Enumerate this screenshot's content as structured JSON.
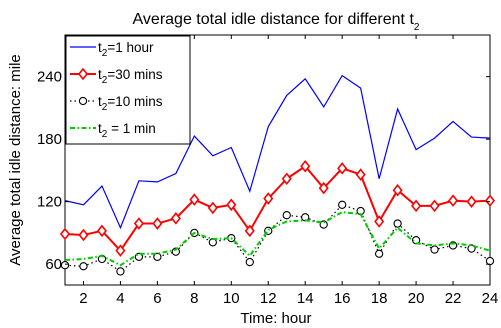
{
  "chart_data": {
    "type": "line",
    "title": "Average total idle distance for different t",
    "title_subscript": "2",
    "xlabel": "Time: hour",
    "ylabel": "Average total idle distance: mile",
    "xlim": [
      1,
      24
    ],
    "ylim": [
      40,
      280
    ],
    "x_ticks": [
      "2",
      "4",
      "6",
      "8",
      "10",
      "12",
      "14",
      "16",
      "18",
      "20",
      "22",
      "24"
    ],
    "y_ticks": [
      "60",
      "120",
      "180",
      "240"
    ],
    "legend_position": "top-left",
    "grid": false,
    "x": [
      1,
      2,
      3,
      4,
      5,
      6,
      7,
      8,
      9,
      10,
      11,
      12,
      13,
      14,
      15,
      16,
      17,
      18,
      19,
      20,
      21,
      22,
      23,
      24
    ],
    "series": [
      {
        "name": "t",
        "name_sub": "2",
        "name_suffix": "=1 hour",
        "color": "#0000ff",
        "style": "solid",
        "marker": "none",
        "values": [
          121,
          117,
          135,
          95,
          140,
          139,
          147,
          183,
          164,
          172,
          130,
          192,
          222,
          238,
          211,
          241,
          229,
          142,
          209,
          170,
          181,
          197,
          182,
          181
        ]
      },
      {
        "name": "t",
        "name_sub": "2",
        "name_suffix": "=30 mins",
        "color": "#ff0000",
        "style": "solid",
        "marker": "diamond",
        "values": [
          89,
          88,
          92,
          73,
          99,
          99,
          104,
          122,
          114,
          117,
          92,
          123,
          142,
          154,
          133,
          152,
          146,
          101,
          131,
          116,
          116,
          121,
          120,
          121
        ]
      },
      {
        "name": "t",
        "name_sub": "2",
        "name_suffix": "=10 mins",
        "color": "#000000",
        "style": "dotted",
        "marker": "circle",
        "values": [
          59,
          58,
          65,
          53,
          67,
          67,
          72,
          90,
          81,
          85,
          62,
          92,
          107,
          105,
          98,
          117,
          111,
          70,
          99,
          83,
          74,
          78,
          75,
          63
        ]
      },
      {
        "name": "t",
        "name_sub": "2",
        "name_suffix": " = 1 min",
        "color": "#00cc00",
        "style": "dashdot",
        "marker": "none",
        "values": [
          64,
          65,
          68,
          59,
          70,
          70,
          74,
          90,
          84,
          85,
          68,
          93,
          101,
          102,
          100,
          110,
          108,
          75,
          95,
          80,
          78,
          80,
          78,
          73
        ]
      }
    ]
  }
}
